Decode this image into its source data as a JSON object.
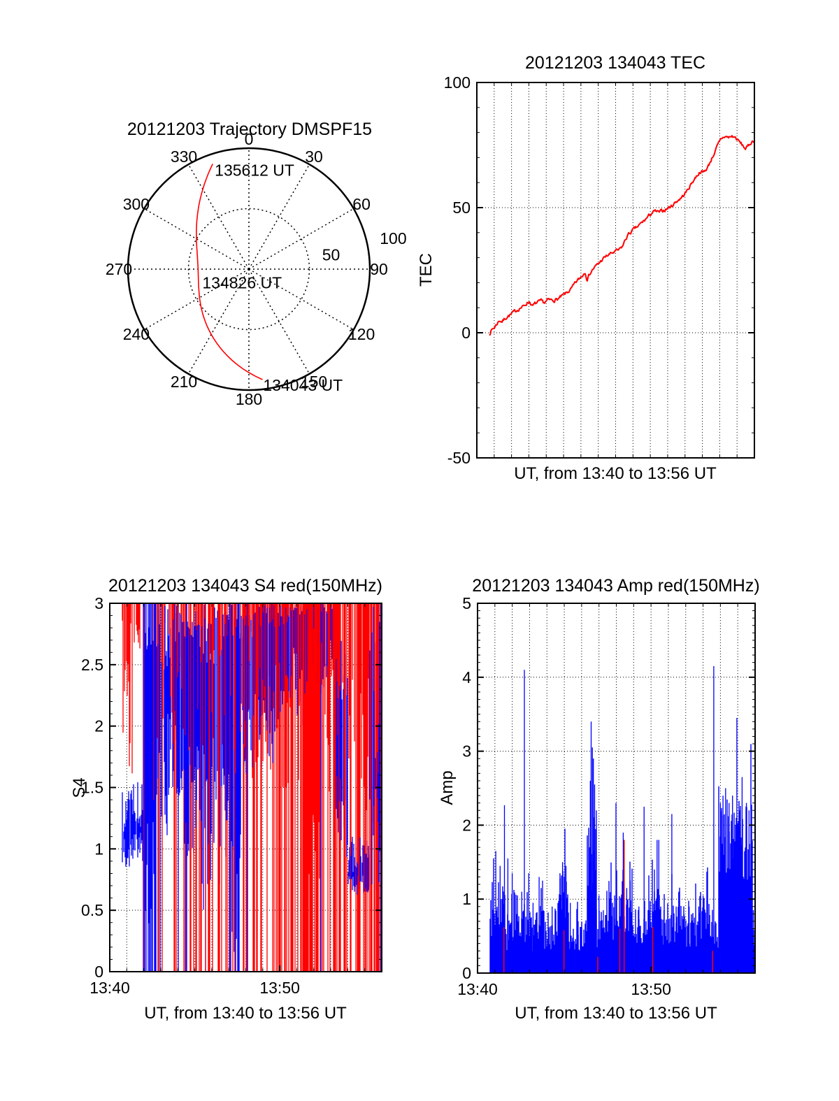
{
  "colors": {
    "data_red": "#ff0000",
    "data_blue": "#0000ff",
    "axis_black": "#000000",
    "background": "#ffffff"
  },
  "chart_data": [
    {
      "type": "polar-trajectory",
      "title": "20121203 Trajectory DMSPF15",
      "azimuth_ticks": [
        0,
        30,
        60,
        90,
        120,
        150,
        180,
        210,
        240,
        270,
        300,
        330
      ],
      "rings": [
        {
          "r": 50,
          "style": "dotted"
        },
        {
          "r": 100,
          "style": "solid"
        }
      ],
      "ring_labels": [
        {
          "text": "50",
          "az_deg": 80,
          "r": 69
        },
        {
          "text": "100",
          "az_deg": 78,
          "r": 122
        }
      ],
      "max_r": 100,
      "spoke_step_deg": 30,
      "trajectory": {
        "color": "#ff0000",
        "anchors_az_r": [
          [
            173,
            92
          ],
          [
            268,
            42
          ],
          [
            341,
            92
          ]
        ],
        "labels": [
          {
            "text": "134043 UT",
            "anchor": 0,
            "dx": 1,
            "dy": 16
          },
          {
            "text": "134826 UT",
            "anchor": 1,
            "dx": 6,
            "dy": 25
          },
          {
            "text": "135612 UT",
            "anchor": 2,
            "dx": 3,
            "dy": 17
          }
        ]
      }
    },
    {
      "type": "line",
      "title": "20121203 134043 TEC",
      "ylabel": "TEC",
      "xlabel": "UT, from 13:40 to 13:56 UT",
      "xlim_minutes": [
        0,
        16
      ],
      "ylim": [
        -50,
        100
      ],
      "yticks": [
        {
          "v": 100,
          "label": "100"
        },
        {
          "v": 50,
          "label": "50"
        },
        {
          "v": 0,
          "label": "0"
        },
        {
          "v": -50,
          "label": "-50"
        }
      ],
      "y_minor_step": 10,
      "hgrid": [
        0,
        50
      ],
      "vgrid_every_min": 1,
      "xticks": [],
      "x_start_label": "13:40",
      "x_end_label": "13:56",
      "series_color": "#ff0000",
      "noise_amp": 0.6,
      "points": [
        [
          0.72,
          -0.5
        ],
        [
          0.8,
          0.5
        ],
        [
          0.9,
          1.5
        ],
        [
          1.0,
          2
        ],
        [
          1.15,
          3.5
        ],
        [
          1.3,
          5
        ],
        [
          1.45,
          4.5
        ],
        [
          1.6,
          5.5
        ],
        [
          1.75,
          6.5
        ],
        [
          1.9,
          7
        ],
        [
          2.1,
          8
        ],
        [
          2.3,
          9
        ],
        [
          2.5,
          10
        ],
        [
          2.7,
          10.5
        ],
        [
          2.9,
          12
        ],
        [
          3.05,
          12.5
        ],
        [
          3.2,
          10.5
        ],
        [
          3.35,
          11.5
        ],
        [
          3.5,
          12
        ],
        [
          3.7,
          12.5
        ],
        [
          3.9,
          12
        ],
        [
          4.1,
          13
        ],
        [
          4.4,
          13
        ],
        [
          4.7,
          13.5
        ],
        [
          5.0,
          15
        ],
        [
          5.2,
          16
        ],
        [
          5.45,
          17.5
        ],
        [
          5.7,
          20
        ],
        [
          5.9,
          21.5
        ],
        [
          6.1,
          23
        ],
        [
          6.25,
          24.5
        ],
        [
          6.35,
          21.5
        ],
        [
          6.5,
          23.5
        ],
        [
          6.7,
          25.5
        ],
        [
          7.0,
          27.5
        ],
        [
          7.2,
          29
        ],
        [
          7.45,
          30.5
        ],
        [
          7.7,
          31.5
        ],
        [
          8.0,
          32.5
        ],
        [
          8.2,
          33
        ],
        [
          8.4,
          34.5
        ],
        [
          8.55,
          37
        ],
        [
          8.7,
          39
        ],
        [
          9.0,
          41
        ],
        [
          9.3,
          42.5
        ],
        [
          9.6,
          44.5
        ],
        [
          9.9,
          46.5
        ],
        [
          10.1,
          48
        ],
        [
          10.3,
          48.5
        ],
        [
          10.5,
          48
        ],
        [
          10.8,
          49
        ],
        [
          11.2,
          50.5
        ],
        [
          11.5,
          52.5
        ],
        [
          11.8,
          54
        ],
        [
          12.1,
          56.5
        ],
        [
          12.4,
          60
        ],
        [
          12.7,
          63
        ],
        [
          12.9,
          64.5
        ],
        [
          13.05,
          64
        ],
        [
          13.3,
          66
        ],
        [
          13.5,
          69
        ],
        [
          13.7,
          72
        ],
        [
          13.9,
          75
        ],
        [
          14.1,
          77.5
        ],
        [
          14.3,
          78.5
        ],
        [
          14.5,
          78
        ],
        [
          14.7,
          78.5
        ],
        [
          14.9,
          78
        ],
        [
          15.1,
          76.5
        ],
        [
          15.3,
          75
        ],
        [
          15.5,
          73.5
        ],
        [
          15.65,
          74.5
        ],
        [
          15.8,
          76
        ],
        [
          16.0,
          77
        ]
      ]
    },
    {
      "type": "scintillation-strokes",
      "title": "20121203 134043 S4 red(150MHz)",
      "ylabel": "S4",
      "xlabel": "UT, from 13:40 to 13:56 UT",
      "xlim_minutes": [
        0,
        16
      ],
      "ylim": [
        0,
        3
      ],
      "yticks": [
        {
          "v": 3,
          "label": "3"
        },
        {
          "v": 2.5,
          "label": "2.5"
        },
        {
          "v": 2,
          "label": "2"
        },
        {
          "v": 1.5,
          "label": "1.5"
        },
        {
          "v": 1,
          "label": "1"
        },
        {
          "v": 0.5,
          "label": "0.5"
        },
        {
          "v": 0,
          "label": "0"
        }
      ],
      "y_minor_step": 0.1,
      "hgrid": [
        0.5,
        1,
        1.5,
        2,
        2.5
      ],
      "vgrid_every_min": 1,
      "xticks": [
        {
          "t": 0,
          "label": "13:40"
        },
        {
          "t": 10,
          "label": "13:50"
        }
      ],
      "red_color": "#ff0000",
      "blue_color": "#0000ff",
      "data_start_min": 0.72,
      "segments_schema": "[t0,t1, red_prob, red_full_prob, red_bottom_lo, red_bottom_hi, blue_prob, blue_full_prob, blue_lo_min, blue_lo_max, blue_hi_min, blue_hi_max]",
      "segments": [
        [
          0.72,
          1.35,
          0.85,
          0.06,
          1.5,
          2.9,
          0.92,
          0,
          0.85,
          1.1,
          1.1,
          1.55
        ],
        [
          1.35,
          1.95,
          0.5,
          0.18,
          2.4,
          2.95,
          0.85,
          0,
          0.9,
          1.15,
          1.15,
          1.55
        ],
        [
          1.95,
          2.75,
          0.25,
          0.5,
          0.5,
          2.5,
          0.97,
          0.75,
          0.2,
          1.4,
          2.6,
          3
        ],
        [
          2.75,
          3.4,
          0.45,
          0.2,
          1.8,
          2.9,
          0.9,
          0.1,
          1.1,
          1.9,
          2.4,
          3
        ],
        [
          3.4,
          4.3,
          0.6,
          0.25,
          1.5,
          2.8,
          0.78,
          0.05,
          1.4,
          2.2,
          2.5,
          3
        ],
        [
          4.3,
          5.3,
          0.5,
          0.3,
          1.5,
          2.8,
          0.85,
          0.05,
          0.9,
          1.9,
          2.7,
          3
        ],
        [
          5.3,
          6.2,
          0.55,
          0.3,
          1.5,
          2.8,
          0.8,
          0.05,
          0.5,
          1.8,
          2.5,
          3
        ],
        [
          6.2,
          7.0,
          0.6,
          0.4,
          1.5,
          2.8,
          0.8,
          0.08,
          0.55,
          1.8,
          2.6,
          3
        ],
        [
          7.0,
          7.7,
          0.4,
          0.3,
          1.5,
          2.8,
          0.95,
          0.45,
          0.1,
          1.2,
          2.7,
          3
        ],
        [
          7.7,
          8.6,
          0.7,
          0.45,
          1.5,
          2.8,
          0.8,
          0.05,
          1.6,
          2.3,
          2.7,
          3
        ],
        [
          8.6,
          9.6,
          0.7,
          0.5,
          1.5,
          2.6,
          0.85,
          0.03,
          1.6,
          2.4,
          2.8,
          3
        ],
        [
          9.6,
          10.7,
          0.8,
          0.55,
          1.4,
          2.5,
          0.7,
          0.02,
          1.9,
          2.6,
          2.8,
          3
        ],
        [
          10.7,
          11.5,
          0.75,
          0.55,
          1.5,
          2.6,
          0.7,
          0,
          2.0,
          2.7,
          2.9,
          3
        ],
        [
          11.5,
          12.4,
          0.97,
          0.85,
          0.2,
          1.5,
          0.35,
          0,
          2.3,
          2.8,
          2.95,
          3
        ],
        [
          12.4,
          13.3,
          0.8,
          0.6,
          1.4,
          2.6,
          0.65,
          0.03,
          2.1,
          2.7,
          2.9,
          3
        ],
        [
          13.3,
          14.0,
          0.75,
          0.6,
          1.2,
          2.5,
          0.6,
          0.02,
          0.75,
          1.6,
          2.2,
          3
        ],
        [
          14.0,
          15.3,
          0.7,
          0.55,
          1.3,
          2.5,
          0.92,
          0,
          0.62,
          0.8,
          0.8,
          1.1
        ],
        [
          15.3,
          16.0,
          0.9,
          0.75,
          0.5,
          2.0,
          0.5,
          0.1,
          0.6,
          1.5,
          1.6,
          3
        ]
      ]
    },
    {
      "type": "area-spikes",
      "title": "20121203 134043 Amp red(150MHz)",
      "ylabel": "Amp",
      "xlabel": "UT, from 13:40 to 13:56 UT",
      "xlim_minutes": [
        0,
        16
      ],
      "ylim": [
        0,
        5
      ],
      "yticks": [
        {
          "v": 5,
          "label": "5"
        },
        {
          "v": 4,
          "label": "4"
        },
        {
          "v": 3,
          "label": "3"
        },
        {
          "v": 2,
          "label": "2"
        },
        {
          "v": 1,
          "label": "1"
        },
        {
          "v": 0,
          "label": "0"
        }
      ],
      "y_minor_step": 0.1,
      "hgrid": [
        1,
        2,
        3,
        4
      ],
      "vgrid_every_min": 1,
      "xticks": [
        {
          "t": 0,
          "label": "13:40"
        },
        {
          "t": 10,
          "label": "13:50"
        }
      ],
      "main_color": "#0000ff",
      "accent_color": "#ff0000",
      "data_start_min": 0.72,
      "baseline_schema": "[t0,t1,mean_top,jitter]",
      "baseline_segments": [
        [
          0.72,
          1.0,
          0.95,
          0.45
        ],
        [
          1.0,
          1.6,
          0.85,
          0.4
        ],
        [
          1.6,
          2.6,
          0.55,
          0.25
        ],
        [
          2.6,
          3.1,
          0.7,
          0.3
        ],
        [
          3.1,
          3.9,
          0.55,
          0.3
        ],
        [
          3.9,
          4.6,
          0.5,
          0.2
        ],
        [
          4.6,
          5.25,
          1.05,
          0.35
        ],
        [
          5.25,
          6.3,
          0.5,
          0.2
        ],
        [
          6.3,
          6.85,
          1.3,
          0.8
        ],
        [
          6.85,
          7.4,
          0.6,
          0.3
        ],
        [
          7.4,
          8.25,
          0.75,
          0.35
        ],
        [
          8.25,
          9.0,
          0.8,
          0.3
        ],
        [
          9.0,
          9.6,
          0.55,
          0.2
        ],
        [
          9.6,
          10.6,
          0.85,
          0.35
        ],
        [
          10.6,
          11.1,
          0.55,
          0.2
        ],
        [
          11.1,
          11.9,
          0.7,
          0.3
        ],
        [
          11.9,
          12.9,
          0.6,
          0.25
        ],
        [
          12.9,
          13.5,
          0.65,
          0.3
        ],
        [
          13.5,
          13.9,
          0.5,
          0.2
        ],
        [
          13.9,
          15.85,
          1.8,
          0.55
        ],
        [
          15.85,
          16,
          0.6,
          0.25
        ]
      ],
      "spikes": [
        [
          1.05,
          1.65
        ],
        [
          1.3,
          1.45
        ],
        [
          1.55,
          2.27
        ],
        [
          1.75,
          1.55
        ],
        [
          2.0,
          1.35
        ],
        [
          2.3,
          1.05
        ],
        [
          2.55,
          1.1
        ],
        [
          2.7,
          4.1
        ],
        [
          2.95,
          1.35
        ],
        [
          3.2,
          0.95
        ],
        [
          3.55,
          1.3
        ],
        [
          3.75,
          1.25
        ],
        [
          4.3,
          0.9
        ],
        [
          4.75,
          1.35
        ],
        [
          4.9,
          1.5
        ],
        [
          5.1,
          1.45
        ],
        [
          5.35,
          0.95
        ],
        [
          5.8,
          0.7
        ],
        [
          6.45,
          1.7
        ],
        [
          6.5,
          2.6
        ],
        [
          6.55,
          3.4
        ],
        [
          6.62,
          3.05
        ],
        [
          6.68,
          2.9
        ],
        [
          6.75,
          2.55
        ],
        [
          6.85,
          2.2
        ],
        [
          7.0,
          1.05
        ],
        [
          7.25,
          0.85
        ],
        [
          7.98,
          2.3
        ],
        [
          7.7,
          1.0
        ],
        [
          7.9,
          1.05
        ],
        [
          8.4,
          1.9
        ],
        [
          8.6,
          1.15
        ],
        [
          8.8,
          1.25
        ],
        [
          9.3,
          0.9
        ],
        [
          9.6,
          2.25
        ],
        [
          9.9,
          0.85
        ],
        [
          10.2,
          1.4
        ],
        [
          10.35,
          1.8
        ],
        [
          10.45,
          1.8
        ],
        [
          10.75,
          0.85
        ],
        [
          11.2,
          2.15
        ],
        [
          11.45,
          0.9
        ],
        [
          11.6,
          1.1
        ],
        [
          11.9,
          0.8
        ],
        [
          12.2,
          0.9
        ],
        [
          12.5,
          0.75
        ],
        [
          12.75,
          0.9
        ],
        [
          13.0,
          1.05
        ],
        [
          13.62,
          4.15
        ],
        [
          14.0,
          2.3
        ],
        [
          14.15,
          2.4
        ],
        [
          14.3,
          2.5
        ],
        [
          14.5,
          2.3
        ],
        [
          14.7,
          2.4
        ],
        [
          14.95,
          3.45
        ],
        [
          15.1,
          2.2
        ],
        [
          15.25,
          2.65
        ],
        [
          15.5,
          2.3
        ],
        [
          15.65,
          2.2
        ],
        [
          15.9,
          0.85
        ]
      ],
      "red_marks": [
        [
          1.52,
          0.62
        ],
        [
          4.98,
          0.58
        ],
        [
          6.93,
          0.22
        ],
        [
          8.2,
          0.6
        ],
        [
          8.45,
          1.8
        ],
        [
          10.1,
          0.62
        ],
        [
          13.55,
          0.3
        ]
      ]
    }
  ]
}
